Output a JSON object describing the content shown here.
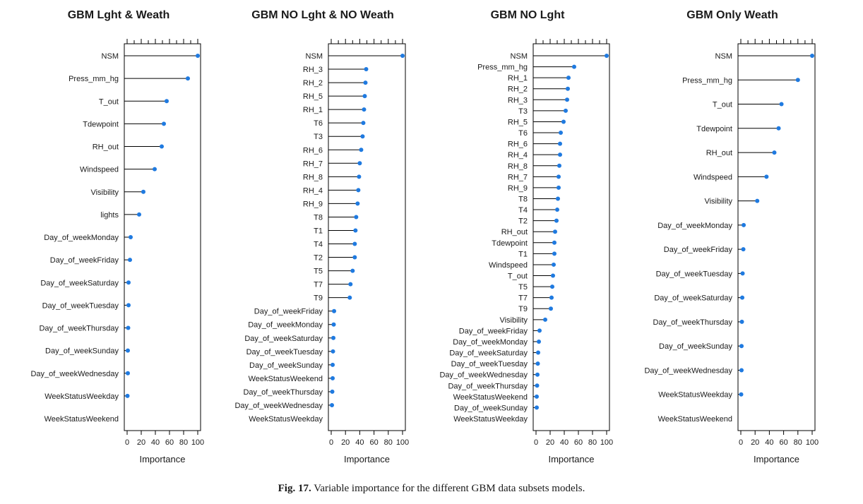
{
  "caption": {
    "label": "Fig. 17.",
    "text": "Variable importance for the different GBM data subsets models."
  },
  "colors": {
    "point": "#1f7ae0",
    "stem": "#000000"
  },
  "chart_data": [
    {
      "type": "scatter",
      "title": "GBM Lght & Weath",
      "xlabel": "Importance",
      "xlim": [
        0,
        100
      ],
      "xticks": [
        "0",
        "20",
        "40",
        "60",
        "80",
        "100"
      ],
      "categories": [
        "NSM",
        "Press_mm_hg",
        "T_out",
        "Tdewpoint",
        "RH_out",
        "Windspeed",
        "Visibility",
        "lights",
        "Day_of_weekMonday",
        "Day_of_weekFriday",
        "Day_of_weekSaturday",
        "Day_of_weekTuesday",
        "Day_of_weekThursday",
        "Day_of_weekSunday",
        "Day_of_weekWednesday",
        "WeekStatusWeekday",
        "WeekStatusWeekend"
      ],
      "values": [
        100,
        86,
        56,
        52,
        49,
        39,
        23,
        17,
        5,
        4,
        2,
        2,
        1.5,
        1,
        1,
        0.5,
        null
      ]
    },
    {
      "type": "scatter",
      "title": "GBM NO Lght & NO Weath",
      "xlabel": "Importance",
      "xlim": [
        0,
        100
      ],
      "xticks": [
        "0",
        "20",
        "40",
        "60",
        "80",
        "100"
      ],
      "categories": [
        "NSM",
        "RH_3",
        "RH_2",
        "RH_5",
        "RH_1",
        "T6",
        "T3",
        "RH_6",
        "RH_7",
        "RH_8",
        "RH_4",
        "RH_9",
        "T8",
        "T1",
        "T4",
        "T2",
        "T5",
        "T7",
        "T9",
        "Day_of_weekFriday",
        "Day_of_weekMonday",
        "Day_of_weekSaturday",
        "Day_of_weekTuesday",
        "Day_of_weekSunday",
        "WeekStatusWeekend",
        "Day_of_weekThursday",
        "Day_of_weekWednesday",
        "WeekStatusWeekday"
      ],
      "values": [
        100,
        49,
        48,
        47,
        46,
        45,
        44,
        42,
        40,
        39,
        38,
        37,
        35,
        34,
        33,
        33,
        30,
        27,
        26,
        4,
        3.5,
        3,
        2.5,
        2,
        2,
        1.5,
        1,
        null
      ]
    },
    {
      "type": "scatter",
      "title": "GBM NO Lght",
      "xlabel": "Importance",
      "xlim": [
        0,
        100
      ],
      "xticks": [
        "0",
        "20",
        "40",
        "60",
        "80",
        "100"
      ],
      "categories": [
        "NSM",
        "Press_mm_hg",
        "RH_1",
        "RH_2",
        "RH_3",
        "T3",
        "RH_5",
        "T6",
        "RH_6",
        "RH_4",
        "RH_8",
        "RH_7",
        "RH_9",
        "T8",
        "T4",
        "T2",
        "RH_out",
        "Tdewpoint",
        "T1",
        "Windspeed",
        "T_out",
        "T5",
        "T7",
        "T9",
        "Visibility",
        "Day_of_weekFriday",
        "Day_of_weekMonday",
        "Day_of_weekSaturday",
        "Day_of_weekTuesday",
        "Day_of_weekWednesday",
        "Day_of_weekThursday",
        "WeekStatusWeekend",
        "Day_of_weekSunday",
        "WeekStatusWeekday"
      ],
      "values": [
        100,
        54,
        46,
        45,
        44,
        42,
        39,
        35,
        34,
        34,
        33,
        32,
        32,
        31,
        30,
        29,
        27,
        26,
        26,
        25,
        24,
        23,
        22,
        21,
        13,
        5,
        4,
        3,
        2.5,
        2,
        1.5,
        1,
        1,
        null
      ]
    },
    {
      "type": "scatter",
      "title": "GBM Only Weath",
      "xlabel": "Importance",
      "xlim": [
        0,
        100
      ],
      "xticks": [
        "0",
        "20",
        "40",
        "60",
        "80",
        "100"
      ],
      "categories": [
        "NSM",
        "Press_mm_hg",
        "T_out",
        "Tdewpoint",
        "RH_out",
        "Windspeed",
        "Visibility",
        "Day_of_weekMonday",
        "Day_of_weekFriday",
        "Day_of_weekTuesday",
        "Day_of_weekSaturday",
        "Day_of_weekThursday",
        "Day_of_weekSunday",
        "Day_of_weekWednesday",
        "WeekStatusWeekday",
        "WeekStatusWeekend"
      ],
      "values": [
        100,
        80,
        57,
        53,
        47,
        36,
        23,
        4,
        3.5,
        2.5,
        2,
        1.5,
        1,
        1,
        0.5,
        null
      ]
    }
  ]
}
